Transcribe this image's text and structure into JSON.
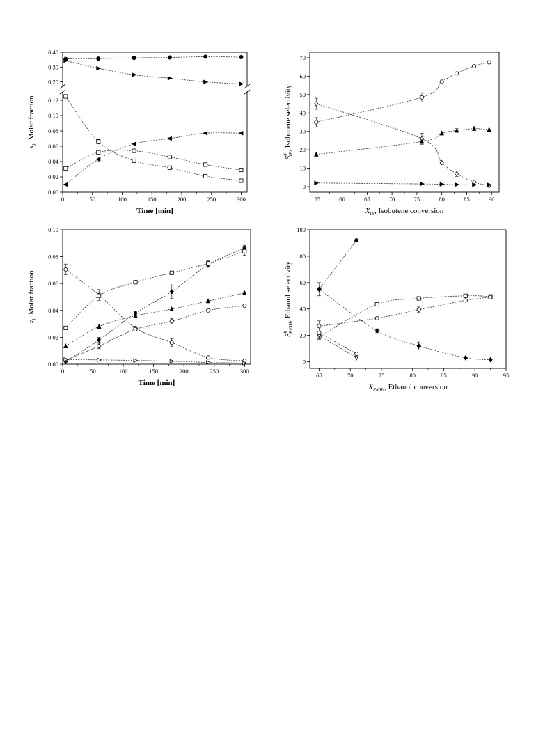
{
  "chart_data": [
    {
      "id": "p1",
      "type": "scatter",
      "xlabel": "Time [min]",
      "ylabel_main": "x",
      "ylabel_sub": "i",
      "ylabel_rest": ", Molar fraction",
      "xlim": [
        0,
        310
      ],
      "x_ticks": [
        "0",
        "50",
        "100",
        "150",
        "200",
        "250",
        "300"
      ],
      "y_break": true,
      "y_lower_lim": [
        0,
        0.13
      ],
      "y_lower_ticks": [
        "0.00",
        "0.02",
        "0.04",
        "0.06",
        "0.08",
        "0.10",
        "0.12"
      ],
      "y_upper_lim": [
        0.175,
        0.4
      ],
      "y_upper_ticks": [
        "0.20",
        "0.30",
        "0.40"
      ],
      "series": [
        {
          "marker": "circle",
          "fill": "black",
          "x": [
            5,
            60,
            120,
            180,
            240,
            300
          ],
          "y": [
            0.355,
            0.357,
            0.362,
            0.365,
            0.37,
            0.367
          ]
        },
        {
          "marker": "tri-right",
          "fill": "black",
          "x": [
            5,
            60,
            120,
            180,
            240,
            300
          ],
          "y": [
            0.343,
            0.292,
            0.248,
            0.225,
            0.2,
            0.187
          ]
        },
        {
          "marker": "tri-left",
          "fill": "black",
          "x": [
            5,
            60,
            120,
            180,
            240,
            300
          ],
          "y": [
            0.01,
            0.043,
            0.063,
            0.07,
            0.077,
            0.077
          ],
          "err": [
            0,
            0.003,
            0,
            0.001,
            0,
            0
          ]
        },
        {
          "marker": "square",
          "fill": "white",
          "x": [
            5,
            60,
            120,
            180,
            240,
            300
          ],
          "y": [
            0.031,
            0.052,
            0.054,
            0.046,
            0.036,
            0.029
          ]
        },
        {
          "marker": "square",
          "fill": "white",
          "x": [
            5,
            60,
            120,
            180,
            240,
            300
          ],
          "y": [
            0.125,
            0.066,
            0.041,
            0.032,
            0.021,
            0.015
          ],
          "err": [
            0,
            0.003,
            0,
            0.001,
            0,
            0
          ]
        }
      ]
    },
    {
      "id": "p2",
      "type": "scatter",
      "xlabel_main": "X",
      "xlabel_sub": "IB",
      "xlabel_rest": ", Isobutene conversion",
      "ylabel_main": "S",
      "ylabel_sup": "#",
      "ylabel_sub": "IB",
      "ylabel_rest": ", Isobutene selectivity",
      "xlim": [
        53.5,
        91.5
      ],
      "x_ticks": [
        "55",
        "60",
        "65",
        "70",
        "75",
        "80",
        "85",
        "90"
      ],
      "ylim": [
        -3,
        73
      ],
      "y_ticks": [
        "0",
        "10",
        "20",
        "30",
        "40",
        "50",
        "60",
        "70"
      ],
      "series": [
        {
          "marker": "circle",
          "fill": "white",
          "x": [
            54.8,
            76,
            80,
            83,
            86.5,
            89.5
          ],
          "y": [
            35,
            48.5,
            57,
            61.5,
            65.5,
            67.5
          ],
          "err": [
            2.5,
            2.5,
            0,
            0,
            0,
            0
          ]
        },
        {
          "marker": "diamond",
          "fill": "white",
          "x": [
            54.8,
            76,
            80,
            83,
            86.5,
            89.5
          ],
          "y": [
            45,
            26,
            13,
            7,
            2.5,
            0.5
          ],
          "err": [
            3,
            3,
            0,
            1.5,
            1,
            0
          ]
        },
        {
          "marker": "tri-up",
          "fill": "black",
          "x": [
            54.8,
            76,
            80,
            83,
            86.5,
            89.5
          ],
          "y": [
            17.5,
            24.5,
            29,
            30.5,
            31.5,
            31
          ],
          "err": [
            0,
            1.5,
            0,
            1,
            1,
            0
          ]
        },
        {
          "marker": "tri-right",
          "fill": "black",
          "x": [
            54.8,
            76,
            80,
            83,
            86.5,
            89.5
          ],
          "y": [
            2,
            1.5,
            1.3,
            1.1,
            1,
            1
          ]
        }
      ]
    },
    {
      "id": "p3",
      "type": "scatter",
      "xlabel": "Time [min]",
      "ylabel_main": "x",
      "ylabel_sub": "i",
      "ylabel_rest": ", Molar fraction",
      "xlim": [
        0,
        310
      ],
      "x_ticks": [
        "0",
        "50",
        "100",
        "150",
        "200",
        "250",
        "300"
      ],
      "ylim": [
        0,
        0.1
      ],
      "y_ticks": [
        "0.00",
        "0.02",
        "0.04",
        "0.06",
        "0.08",
        "0.10"
      ],
      "series": [
        {
          "marker": "circle",
          "fill": "white",
          "x": [
            5,
            60,
            120,
            180,
            240,
            300
          ],
          "y": [
            0.0705,
            0.0515,
            0.027,
            0.016,
            0.005,
            0.0025
          ],
          "err": [
            0.004,
            0.004,
            0,
            0.003,
            0,
            0
          ]
        },
        {
          "marker": "diamond",
          "fill": "black",
          "x": [
            5,
            60,
            120,
            180,
            240,
            300
          ],
          "y": [
            0.002,
            0.018,
            0.038,
            0.054,
            0.074,
            0.0865
          ],
          "err": [
            0,
            0.002,
            0.001,
            0.005,
            0.002,
            0.002
          ]
        },
        {
          "marker": "square",
          "fill": "white",
          "x": [
            5,
            60,
            120,
            180,
            240,
            300
          ],
          "y": [
            0.027,
            0.051,
            0.061,
            0.068,
            0.075,
            0.084
          ],
          "err": [
            0,
            0,
            0,
            0,
            0.002,
            0.003
          ]
        },
        {
          "marker": "tri-up",
          "fill": "black",
          "x": [
            5,
            60,
            120,
            180,
            240,
            300
          ],
          "y": [
            0.0135,
            0.028,
            0.036,
            0.041,
            0.047,
            0.053
          ]
        },
        {
          "marker": "circle",
          "fill": "white",
          "x": [
            5,
            60,
            120,
            180,
            240,
            300
          ],
          "y": [
            0.003,
            0.0135,
            0.026,
            0.032,
            0.04,
            0.0435
          ],
          "err": [
            0,
            0.002,
            0,
            0.002,
            0,
            0
          ]
        },
        {
          "marker": "tri-right",
          "fill": "white",
          "x": [
            5,
            60,
            120,
            180,
            240,
            300
          ],
          "y": [
            0.0035,
            0.0032,
            0.0028,
            0.0022,
            0.0013,
            0.0008
          ]
        }
      ]
    },
    {
      "id": "p4",
      "type": "scatter",
      "xlabel_main": "X",
      "xlabel_sub": "EtOH",
      "xlabel_rest": ", Ethanol conversion",
      "ylabel_main": "S",
      "ylabel_sup": "#",
      "ylabel_sub": "EtOH",
      "ylabel_rest": ", Ethanol selectivity",
      "xlim": [
        63.5,
        95
      ],
      "x_ticks": [
        "65",
        "70",
        "75",
        "80",
        "85",
        "90",
        "95"
      ],
      "ylim": [
        -5,
        100
      ],
      "y_ticks": [
        "0",
        "20",
        "40",
        "60",
        "80",
        "100"
      ],
      "series": [
        {
          "marker": "circle",
          "fill": "black",
          "x": [
            65,
            71
          ],
          "y": [
            55,
            92
          ]
        },
        {
          "marker": "diamond",
          "fill": "black",
          "x": [
            65,
            74.3,
            81,
            88.5,
            92.5
          ],
          "y": [
            55,
            23.5,
            12,
            3,
            1.5
          ],
          "err": [
            5,
            1.5,
            3,
            0,
            0
          ]
        },
        {
          "marker": "square",
          "fill": "white",
          "x": [
            65,
            74.3,
            81,
            88.5,
            92.5
          ],
          "y": [
            19,
            43.5,
            48,
            50,
            49.5
          ],
          "err": [
            2,
            0,
            0,
            0,
            0
          ]
        },
        {
          "marker": "circle",
          "fill": "white",
          "x": [
            65,
            74.3,
            81,
            88.5,
            92.5
          ],
          "y": [
            27,
            33,
            39.5,
            46.5,
            49
          ],
          "err": [
            4,
            0,
            2,
            0,
            0
          ]
        },
        {
          "marker": "tri-down",
          "fill": "white",
          "x": [
            65,
            71
          ],
          "y": [
            20,
            3
          ]
        },
        {
          "marker": "circle",
          "fill": "white",
          "x": [
            65,
            71
          ],
          "y": [
            22,
            6
          ]
        }
      ]
    }
  ]
}
